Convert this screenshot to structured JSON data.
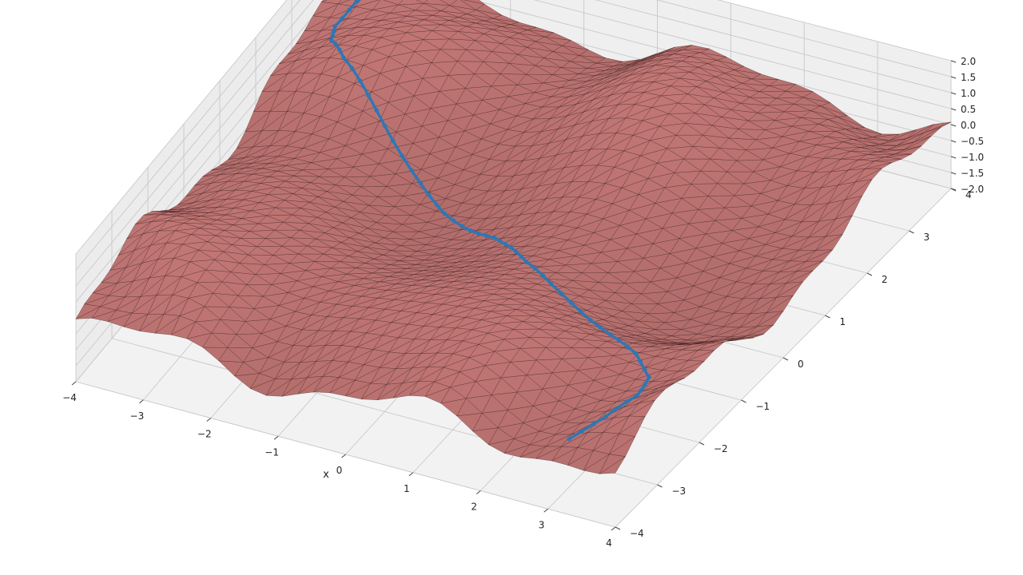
{
  "chart_data": {
    "type": "surface3d",
    "title": "",
    "xlabel": "x",
    "ylabel": "",
    "zlabel": "",
    "xlim": [
      -4,
      4
    ],
    "ylim": [
      -4,
      4
    ],
    "zlim": [
      -2,
      2
    ],
    "x_ticks": [
      "−4",
      "−3",
      "−2",
      "−1",
      "0",
      "1",
      "2",
      "3",
      "4"
    ],
    "y_ticks": [
      "−4",
      "−3",
      "−2",
      "−1",
      "0",
      "1",
      "2",
      "3",
      "4"
    ],
    "z_ticks": [
      "−2.0",
      "−1.5",
      "−1.0",
      "−0.5",
      "0.0",
      "0.5",
      "1.0",
      "1.5",
      "2.0"
    ],
    "grid": true,
    "surface_color": "#c77a78",
    "mesh_color": "#2a1010",
    "pane_color": "#f2f2f2",
    "grid_color": "#c8c8c8",
    "path_color": "#2f77b4",
    "surface": {
      "formula": "z = 0.5*(sin(1.6*x) - 1.2*cos(1.25*y)) + 0.2*sin(0.9*x*y)"
    },
    "path": {
      "points": [
        [
          -3.0,
          3.8
        ],
        [
          -3.3,
          3.4
        ],
        [
          -3.55,
          2.9
        ],
        [
          -3.6,
          2.4
        ],
        [
          -3.45,
          2.0
        ],
        [
          -3.1,
          1.65
        ],
        [
          -2.6,
          1.35
        ],
        [
          -2.1,
          1.05
        ],
        [
          -1.55,
          0.75
        ],
        [
          -1.05,
          0.45
        ],
        [
          -0.55,
          0.2
        ],
        [
          -0.1,
          0.0
        ],
        [
          0.3,
          -0.3
        ],
        [
          0.75,
          -0.7
        ],
        [
          1.3,
          -1.05
        ],
        [
          1.9,
          -1.35
        ],
        [
          2.5,
          -1.65
        ],
        [
          3.05,
          -1.95
        ],
        [
          3.45,
          -2.3
        ],
        [
          3.55,
          -2.75
        ],
        [
          3.4,
          -3.25
        ],
        [
          3.1,
          -3.65
        ]
      ]
    }
  }
}
